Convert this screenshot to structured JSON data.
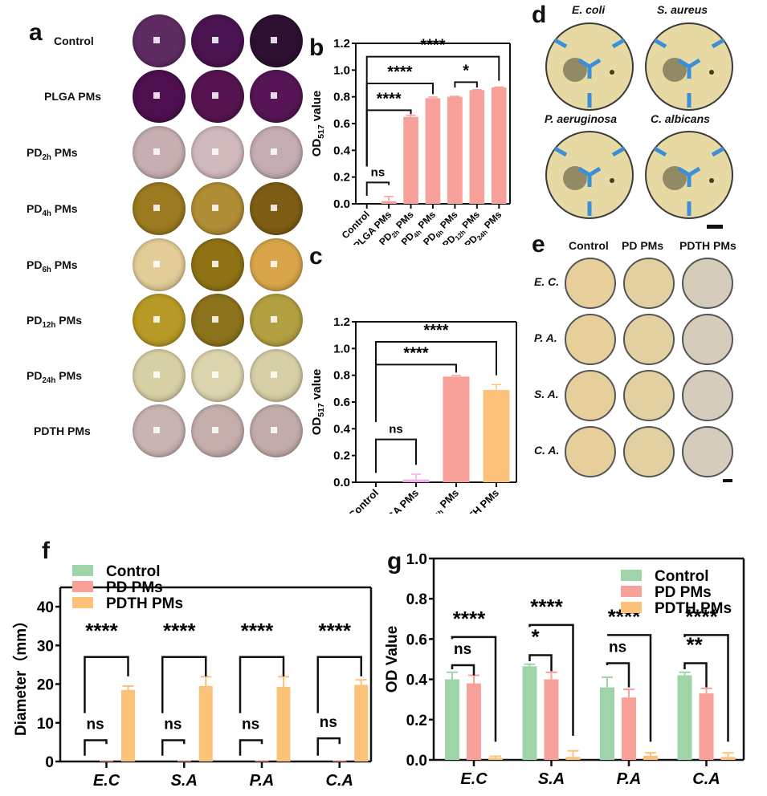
{
  "panel_letters": {
    "a": "a",
    "b": "b",
    "c": "c",
    "d": "d",
    "e": "e",
    "f": "f",
    "g": "g"
  },
  "panel_a": {
    "rows": [
      {
        "label": "Control",
        "colors": [
          "#5e2c62",
          "#4a1450",
          "#2e1030"
        ]
      },
      {
        "label_main": "PLGA PMs",
        "colors": [
          "#4d0f4e",
          "#55144f",
          "#561555"
        ]
      },
      {
        "label_pre": "PD",
        "label_sub": "2h",
        "label_post": " PMs",
        "colors": [
          "#c7aeb0",
          "#d0b9bb",
          "#c4adb0"
        ]
      },
      {
        "label_pre": "PD",
        "label_sub": "4h",
        "label_post": " PMs",
        "colors": [
          "#9b7a20",
          "#b08e35",
          "#7d5e14"
        ]
      },
      {
        "label_pre": "PD",
        "label_sub": "6h",
        "label_post": " PMs",
        "colors": [
          "#e2cc98",
          "#8f7214",
          "#d9a54a"
        ]
      },
      {
        "label_pre": "PD",
        "label_sub": "12h",
        "label_post": " PMs",
        "colors": [
          "#b79a25",
          "#8c731c",
          "#b3a040"
        ]
      },
      {
        "label_pre": "PD",
        "label_sub": "24h",
        "label_post": " PMs",
        "colors": [
          "#d8d0a5",
          "#dcd4ad",
          "#d6cea5"
        ]
      },
      {
        "label": "PDTH PMs",
        "colors": [
          "#c8b4b2",
          "#c4aeac",
          "#c2acab"
        ]
      }
    ]
  },
  "panel_d": {
    "species": [
      "E. coli",
      "S. aureus",
      "P. aeruginosa",
      "C. albicans"
    ],
    "plate_color": "#e6d9a4",
    "marker_color": "#3a8fd6"
  },
  "panel_e": {
    "columns": [
      "Control",
      "PD PMs",
      "PDTH PMs"
    ],
    "rows": [
      "E. C.",
      "P. A.",
      "S. A.",
      "C. A."
    ],
    "plate_colors": [
      "#e6cf9a",
      "#e2d0a0",
      "#d6ccbc"
    ]
  },
  "chart_data": [
    {
      "id": "b",
      "type": "bar",
      "ylabel_pre": "OD",
      "ylabel_sub": "517",
      "ylabel_post": " value",
      "ylim": [
        0,
        1.2
      ],
      "yticks": [
        "0.0",
        "0.2",
        "0.4",
        "0.6",
        "0.8",
        "1.0",
        "1.2"
      ],
      "categories": [
        {
          "pre": "Control",
          "sub": "",
          "post": ""
        },
        {
          "pre": "PLGA PMs",
          "sub": "",
          "post": ""
        },
        {
          "pre": "PD",
          "sub": "2h",
          "post": " PMs"
        },
        {
          "pre": "PD",
          "sub": "4h",
          "post": " PMs"
        },
        {
          "pre": "PD",
          "sub": "6h",
          "post": " PMs"
        },
        {
          "pre": "PD",
          "sub": "12h",
          "post": " PMs"
        },
        {
          "pre": "PD",
          "sub": "24h",
          "post": " PMs"
        }
      ],
      "values": [
        0.0,
        0.02,
        0.65,
        0.79,
        0.8,
        0.85,
        0.87
      ],
      "errors": [
        0.0,
        0.035,
        0.012,
        0.008,
        0.004,
        0.003,
        0.003
      ],
      "colors": [
        "#f8a09a",
        "#f8a09a",
        "#f8a09a",
        "#f8a09a",
        "#f8a09a",
        "#f8a09a",
        "#f8a09a"
      ],
      "significance": [
        {
          "from": 0,
          "to": 1,
          "label": "ns"
        },
        {
          "from": 0,
          "to": 2,
          "label": "****"
        },
        {
          "from": 0,
          "to": 3,
          "label": "****"
        },
        {
          "from": 4,
          "to": 5,
          "label": "*"
        },
        {
          "from": 0,
          "to": 6,
          "label": "****"
        }
      ]
    },
    {
      "id": "c",
      "type": "bar",
      "ylabel_pre": "OD",
      "ylabel_sub": "517",
      "ylabel_post": " value",
      "ylim": [
        0,
        1.2
      ],
      "yticks": [
        "0.0",
        "0.2",
        "0.4",
        "0.6",
        "0.8",
        "1.0",
        "1.2"
      ],
      "categories": [
        {
          "pre": "Control",
          "sub": "",
          "post": ""
        },
        {
          "pre": "PLGA PMs",
          "sub": "",
          "post": ""
        },
        {
          "pre": "PD",
          "sub": "4h",
          "post": " PMs"
        },
        {
          "pre": "PDTH PMs",
          "sub": "",
          "post": ""
        }
      ],
      "values": [
        0.0,
        0.02,
        0.79,
        0.69
      ],
      "errors": [
        0.0,
        0.04,
        0.008,
        0.04
      ],
      "colors": [
        "#f8a09a",
        "#f2a8e6",
        "#f8a09a",
        "#fdc27a"
      ],
      "significance": [
        {
          "from": 0,
          "to": 1,
          "label": "ns"
        },
        {
          "from": 0,
          "to": 2,
          "label": "****"
        },
        {
          "from": 0,
          "to": 3,
          "label": "****"
        }
      ]
    },
    {
      "id": "f",
      "type": "bar",
      "ylabel": "Diameter（mm）",
      "ylim": [
        0,
        45
      ],
      "yticks": [
        "0",
        "10",
        "20",
        "30",
        "40"
      ],
      "categories": [
        "E.C",
        "S.A",
        "P.A",
        "C.A"
      ],
      "series": [
        {
          "name": "Control",
          "color": "#9fd4a8",
          "values": [
            0,
            0,
            0,
            0
          ],
          "errors": [
            0,
            0,
            0,
            0
          ]
        },
        {
          "name": "PD PMs",
          "color": "#f8a09a",
          "values": [
            0.3,
            0.3,
            0.3,
            0.3
          ],
          "errors": [
            0,
            0,
            0,
            0
          ]
        },
        {
          "name": "PDTH PMs",
          "color": "#fdc27a",
          "values": [
            18.5,
            19.5,
            19.3,
            19.8
          ],
          "errors": [
            1.0,
            2.4,
            2.6,
            1.3
          ]
        }
      ],
      "significance": [
        {
          "group": 0,
          "pair": "control-pd",
          "label": "ns"
        },
        {
          "group": 0,
          "pair": "control-pdth",
          "label": "****"
        },
        {
          "group": 1,
          "pair": "control-pd",
          "label": "ns"
        },
        {
          "group": 1,
          "pair": "control-pdth",
          "label": "****"
        },
        {
          "group": 2,
          "pair": "control-pd",
          "label": "ns"
        },
        {
          "group": 2,
          "pair": "control-pdth",
          "label": "****"
        },
        {
          "group": 3,
          "pair": "control-pd",
          "label": "ns"
        },
        {
          "group": 3,
          "pair": "control-pdth",
          "label": "****"
        }
      ],
      "legend": "top-left"
    },
    {
      "id": "g",
      "type": "bar",
      "ylabel": "OD Value",
      "ylim": [
        0,
        1.0
      ],
      "yticks": [
        "0.0",
        "0.2",
        "0.4",
        "0.6",
        "0.8",
        "1.0"
      ],
      "categories": [
        "E.C",
        "S.A",
        "P.A",
        "C.A"
      ],
      "series": [
        {
          "name": "Control",
          "color": "#9fd4a8",
          "values": [
            0.4,
            0.465,
            0.36,
            0.42
          ],
          "errors": [
            0.035,
            0.01,
            0.05,
            0.015
          ]
        },
        {
          "name": "PD PMs",
          "color": "#f8a09a",
          "values": [
            0.38,
            0.4,
            0.31,
            0.33
          ],
          "errors": [
            0.04,
            0.035,
            0.04,
            0.025
          ]
        },
        {
          "name": "PDTH PMs",
          "color": "#fdc27a",
          "values": [
            0.01,
            0.015,
            0.02,
            0.015
          ],
          "errors": [
            0.008,
            0.03,
            0.015,
            0.02
          ]
        }
      ],
      "significance": [
        {
          "group": 0,
          "pair": "control-pd",
          "label": "ns"
        },
        {
          "group": 0,
          "pair": "control-pdth",
          "label": "****"
        },
        {
          "group": 1,
          "pair": "control-pd",
          "label": "*"
        },
        {
          "group": 1,
          "pair": "control-pdth",
          "label": "****"
        },
        {
          "group": 2,
          "pair": "control-pd",
          "label": "ns"
        },
        {
          "group": 2,
          "pair": "control-pdth",
          "label": "****"
        },
        {
          "group": 3,
          "pair": "control-pd",
          "label": "**"
        },
        {
          "group": 3,
          "pair": "control-pdth",
          "label": "****"
        }
      ],
      "legend": "top-right"
    }
  ]
}
